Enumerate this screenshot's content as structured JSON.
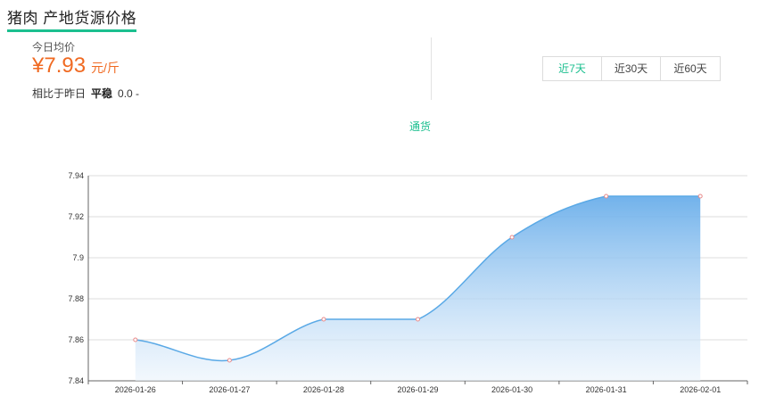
{
  "header": {
    "title": "猪肉 产地货源价格"
  },
  "summary": {
    "today_label": "今日均价",
    "price": "¥7.93",
    "unit": "元/斤",
    "compare_label": "相比于昨日",
    "trend": "平稳",
    "delta": "0.0 -"
  },
  "range_tabs": [
    {
      "label": "近7天",
      "active": true
    },
    {
      "label": "近30天",
      "active": false
    },
    {
      "label": "近60天",
      "active": false
    }
  ],
  "chart_data": {
    "type": "area",
    "legend": [
      "通货"
    ],
    "x": [
      "2026-01-26",
      "2026-01-27",
      "2026-01-28",
      "2026-01-29",
      "2026-01-30",
      "2026-01-31",
      "2026-02-01"
    ],
    "series": [
      {
        "name": "通货",
        "values": [
          7.86,
          7.85,
          7.87,
          7.87,
          7.91,
          7.93,
          7.93
        ]
      }
    ],
    "yticks": [
      "7.84",
      "7.86",
      "7.88",
      "7.9",
      "7.92",
      "7.94"
    ],
    "ylim": [
      7.84,
      7.94
    ],
    "grid": true,
    "colors": {
      "line": "#5aa9e6",
      "fill_top": "#6aaeea",
      "fill_bottom": "#eaf3fc",
      "point": "#e88a8a"
    }
  }
}
